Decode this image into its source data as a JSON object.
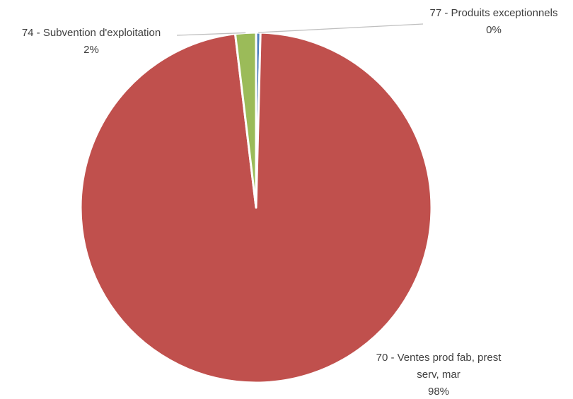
{
  "chart_data": {
    "type": "pie",
    "title": "",
    "slices": [
      {
        "label_line1": "70 - Ventes prod fab, prest",
        "label_line2": "serv, mar",
        "percent_label": "98%",
        "value": 97.7,
        "color": "#c0504d"
      },
      {
        "label_line1": "74 - Subvention d'exploitation",
        "label_line2": "",
        "percent_label": "2%",
        "value": 1.9,
        "color": "#9bbb59"
      },
      {
        "label_line1": "77 - Produits exceptionnels",
        "label_line2": "",
        "percent_label": "0%",
        "value": 0.4,
        "color": "#4f81bd"
      }
    ],
    "start_angle": "top, clockwise, smallest slices first",
    "leader_line_color": "#bfbfbf",
    "slice_border_color": "#ffffff"
  }
}
